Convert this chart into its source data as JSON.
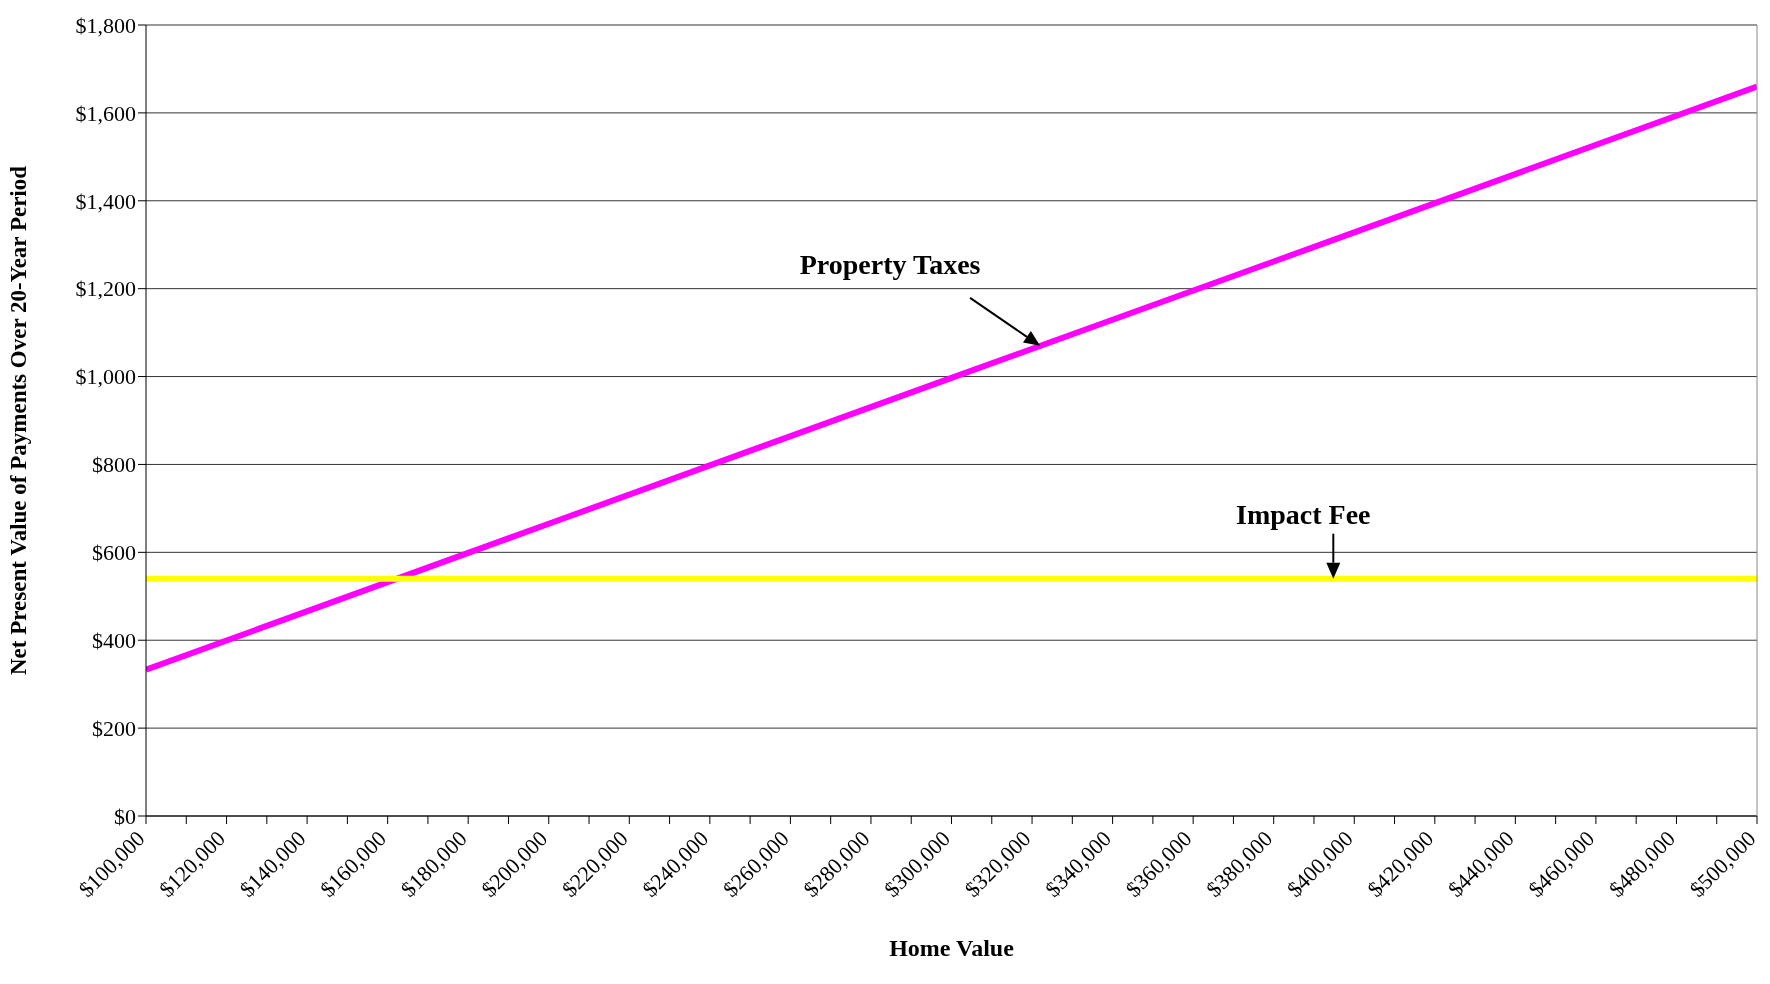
{
  "chart_data": {
    "type": "line",
    "xlabel": "Home Value",
    "ylabel": "Net Present Value of Payments Over 20-Year Period",
    "series": [
      {
        "name": "Property Taxes",
        "color": "#ff00ff",
        "x": [
          100000,
          200000,
          300000,
          400000,
          500000
        ],
        "values": [
          333,
          665,
          997,
          1328,
          1660
        ]
      },
      {
        "name": "Impact Fee",
        "color": "#ffff00",
        "x": [
          100000,
          300000,
          500000
        ],
        "values": [
          540,
          540,
          540
        ]
      }
    ],
    "xlim": [
      100000,
      500000
    ],
    "xticks": [
      {
        "value": 100000,
        "label": "$100,000"
      },
      {
        "value": 110000,
        "label": null
      },
      {
        "value": 120000,
        "label": "$120,000"
      },
      {
        "value": 130000,
        "label": null
      },
      {
        "value": 140000,
        "label": "$140,000"
      },
      {
        "value": 150000,
        "label": null
      },
      {
        "value": 160000,
        "label": "$160,000"
      },
      {
        "value": 170000,
        "label": null
      },
      {
        "value": 180000,
        "label": "$180,000"
      },
      {
        "value": 190000,
        "label": null
      },
      {
        "value": 200000,
        "label": "$200,000"
      },
      {
        "value": 210000,
        "label": null
      },
      {
        "value": 220000,
        "label": "$220,000"
      },
      {
        "value": 230000,
        "label": null
      },
      {
        "value": 240000,
        "label": "$240,000"
      },
      {
        "value": 250000,
        "label": null
      },
      {
        "value": 260000,
        "label": "$260,000"
      },
      {
        "value": 270000,
        "label": null
      },
      {
        "value": 280000,
        "label": "$280,000"
      },
      {
        "value": 290000,
        "label": null
      },
      {
        "value": 300000,
        "label": "$300,000"
      },
      {
        "value": 310000,
        "label": null
      },
      {
        "value": 320000,
        "label": "$320,000"
      },
      {
        "value": 330000,
        "label": null
      },
      {
        "value": 340000,
        "label": "$340,000"
      },
      {
        "value": 350000,
        "label": null
      },
      {
        "value": 360000,
        "label": "$360,000"
      },
      {
        "value": 370000,
        "label": null
      },
      {
        "value": 380000,
        "label": "$380,000"
      },
      {
        "value": 390000,
        "label": null
      },
      {
        "value": 400000,
        "label": "$400,000"
      },
      {
        "value": 410000,
        "label": null
      },
      {
        "value": 420000,
        "label": "$420,000"
      },
      {
        "value": 430000,
        "label": null
      },
      {
        "value": 440000,
        "label": "$440,000"
      },
      {
        "value": 450000,
        "label": null
      },
      {
        "value": 460000,
        "label": "$460,000"
      },
      {
        "value": 470000,
        "label": null
      },
      {
        "value": 480000,
        "label": "$480,000"
      },
      {
        "value": 490000,
        "label": null
      },
      {
        "value": 500000,
        "label": "$500,000"
      }
    ],
    "ylim": [
      0,
      1800
    ],
    "yticks": [
      {
        "value": 0,
        "label": "$0"
      },
      {
        "value": 200,
        "label": "$200"
      },
      {
        "value": 400,
        "label": "$400"
      },
      {
        "value": 600,
        "label": "$600"
      },
      {
        "value": 800,
        "label": "$800"
      },
      {
        "value": 1000,
        "label": "$1,000"
      },
      {
        "value": 1200,
        "label": "$1,200"
      },
      {
        "value": 1400,
        "label": "$1,400"
      },
      {
        "value": 1600,
        "label": "$1,600"
      },
      {
        "value": 1800,
        "label": "$1,800"
      }
    ],
    "grid": "y",
    "legend": false,
    "marker": "none",
    "line_style": "solid"
  }
}
